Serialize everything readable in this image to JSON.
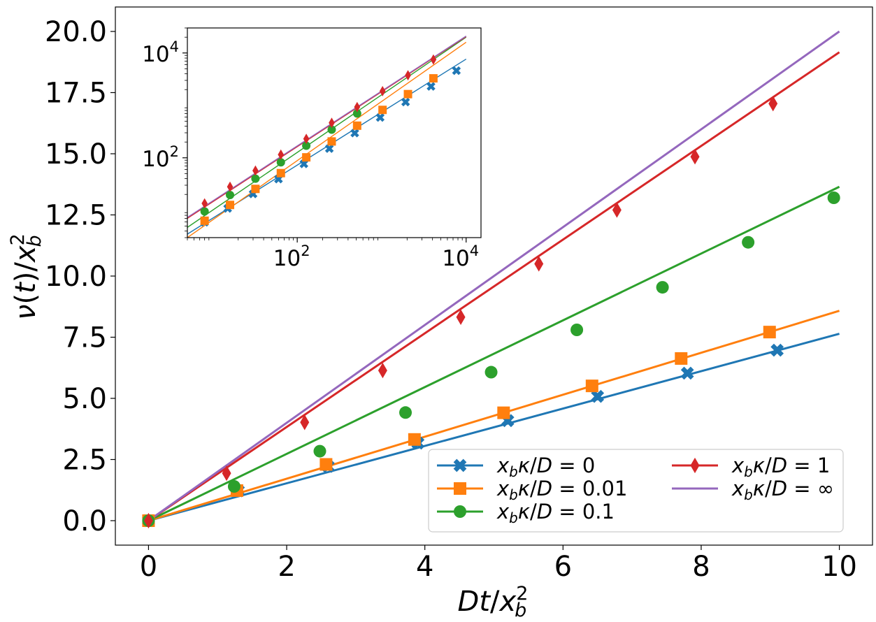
{
  "chart_data": [
    {
      "type": "line",
      "xlabel": "Dt/x_b^2",
      "ylabel": "ν(t)/x_b^2",
      "xlim": [
        -0.48,
        10.48
      ],
      "ylim": [
        -1.0,
        21.0
      ],
      "xticks": [
        0,
        2,
        4,
        6,
        8,
        10
      ],
      "xtick_labels": [
        "0",
        "2",
        "4",
        "6",
        "8",
        "10"
      ],
      "yticks": [
        0,
        2.5,
        5,
        7.5,
        10,
        12.5,
        15,
        17.5,
        20
      ],
      "ytick_labels": [
        "0.0",
        "2.5",
        "5.0",
        "7.5",
        "10.0",
        "12.5",
        "15.0",
        "17.5",
        "20.0"
      ],
      "grid": false,
      "legend": "lower-right",
      "series": [
        {
          "name": "x_b κ/D = 0",
          "color": "#1f77b4",
          "marker": "x",
          "line": {
            "x": [
              0,
              10
            ],
            "y": [
              0,
              7.64
            ]
          },
          "points": {
            "x": [
              0,
              1.3,
              2.6,
              3.9,
              5.2,
              6.5,
              7.8,
              9.1
            ],
            "y": [
              0,
              1.22,
              2.22,
              3.17,
              4.09,
              5.08,
              6.03,
              6.97
            ]
          }
        },
        {
          "name": "x_b κ/D = 0.01",
          "color": "#ff7f0e",
          "marker": "s",
          "line": {
            "x": [
              0,
              10
            ],
            "y": [
              0,
              8.58
            ]
          },
          "points": {
            "x": [
              0,
              1.28,
              2.57,
              3.85,
              5.14,
              6.42,
              7.71,
              8.99
            ],
            "y": [
              0,
              1.23,
              2.3,
              3.32,
              4.41,
              5.51,
              6.63,
              7.71
            ]
          }
        },
        {
          "name": "x_b κ/D = 0.1",
          "color": "#2ca02c",
          "marker": "o",
          "line": {
            "x": [
              0,
              10
            ],
            "y": [
              0,
              13.65
            ]
          },
          "points": {
            "x": [
              0,
              1.24,
              2.48,
              3.72,
              4.96,
              6.2,
              7.44,
              8.68,
              9.92
            ],
            "y": [
              0,
              1.4,
              2.84,
              4.42,
              6.07,
              7.8,
              9.54,
              11.38,
              13.2
            ]
          }
        },
        {
          "name": "x_b κ/D = 1",
          "color": "#d62728",
          "marker": "d",
          "line": {
            "x": [
              0,
              10
            ],
            "y": [
              0,
              19.15
            ]
          },
          "points": {
            "x": [
              0,
              1.13,
              2.26,
              3.39,
              4.52,
              5.65,
              6.78,
              7.91,
              9.04
            ],
            "y": [
              0,
              1.94,
              4.02,
              6.14,
              8.32,
              10.5,
              12.7,
              14.88,
              17.05
            ]
          }
        },
        {
          "name": "x_b κ/D = ∞",
          "color": "#9467bd",
          "marker": "none",
          "line": {
            "x": [
              0,
              10
            ],
            "y": [
              0,
              20.0
            ]
          },
          "points": {
            "x": [],
            "y": []
          }
        }
      ]
    },
    {
      "type": "line",
      "scale": "log-log",
      "xlim": [
        5,
        15000
      ],
      "ylim": [
        3,
        30000
      ],
      "xticks": [
        100,
        10000
      ],
      "yticks": [
        100,
        10000
      ],
      "xtick_labels": [
        {
          "base": "10",
          "exp": "2"
        },
        {
          "base": "10",
          "exp": "4"
        }
      ],
      "ytick_labels": [
        {
          "base": "10",
          "exp": "2"
        },
        {
          "base": "10",
          "exp": "4"
        }
      ],
      "grid": false,
      "series": [
        {
          "name": "x_b κ/D = 0",
          "color": "#1f77b4",
          "marker": "x",
          "line": {
            "x": [
              5,
              10000
            ],
            "y": [
              3.5,
              7640
            ]
          },
          "points": {
            "x": [
              8,
              15,
              30,
              60,
              120,
              240,
              480,
              960,
              1920,
              3840,
              7680
            ],
            "y": [
              5.9,
              10.8,
              20.4,
              39.2,
              76.5,
              150,
              296,
              587,
              1160,
              2300,
              4590
            ]
          }
        },
        {
          "name": "x_b κ/D = 0.01",
          "color": "#ff7f0e",
          "marker": "s",
          "line": {
            "x": [
              5,
              10000
            ],
            "y": [
              3.0,
              16000
            ]
          },
          "points": {
            "x": [
              8,
              16,
              32,
              64,
              128,
              256,
              512,
              1024,
              2048,
              4096
            ],
            "y": [
              6.3,
              12.6,
              25.5,
              51,
              102,
              205,
              410,
              820,
              1640,
              3280
            ]
          }
        },
        {
          "name": "x_b κ/D = 0.1",
          "color": "#2ca02c",
          "marker": "o",
          "line": {
            "x": [
              5,
              10000
            ],
            "y": [
              4.7,
              20000
            ]
          },
          "points": {
            "x": [
              8,
              16,
              32,
              64,
              128,
              256,
              512
            ],
            "y": [
              9.5,
              19.5,
              40,
              82,
              170,
              345,
              700
            ]
          }
        },
        {
          "name": "x_b κ/D = 1",
          "color": "#d62728",
          "marker": "d",
          "line": {
            "x": [
              5,
              10000
            ],
            "y": [
              7.0,
              20500
            ]
          },
          "points": {
            "x": [
              8,
              16,
              32,
              64,
              128,
              256,
              512,
              1024,
              2048,
              4096
            ],
            "y": [
              13.5,
              28,
              57,
              115,
              230,
              465,
              930,
              1870,
              3750,
              7500
            ]
          }
        },
        {
          "name": "x_b κ/D = ∞",
          "color": "#9467bd",
          "marker": "none",
          "line": {
            "x": [
              5,
              10000
            ],
            "y": [
              7.3,
              21000
            ]
          },
          "points": {
            "x": [],
            "y": []
          }
        }
      ]
    }
  ]
}
